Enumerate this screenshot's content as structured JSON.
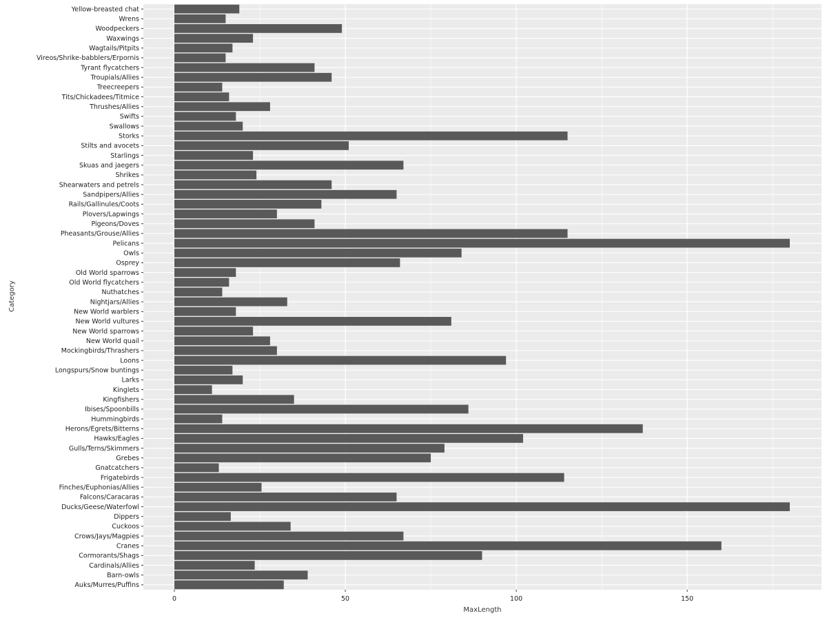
{
  "chart_data": {
    "type": "bar",
    "orientation": "horizontal",
    "xlabel": "MaxLength",
    "ylabel": "Category",
    "xlim": [
      0,
      188
    ],
    "xticks": [
      0,
      50,
      100,
      150
    ],
    "grid": true,
    "bar_color": "#595959",
    "panel_color": "#ebebeb",
    "gridline_color": "#ffffff",
    "categories": [
      "Auks/Murres/Puffins",
      "Barn-owls",
      "Cardinals/Allies",
      "Cormorants/Shags",
      "Cranes",
      "Crows/Jays/Magpies",
      "Cuckoos",
      "Dippers",
      "Ducks/Geese/Waterfowl",
      "Falcons/Caracaras",
      "Finches/Euphonias/Allies",
      "Frigatebirds",
      "Gnatcatchers",
      "Grebes",
      "Gulls/Terns/Skimmers",
      "Hawks/Eagles",
      "Herons/Egrets/Bitterns",
      "Hummingbirds",
      "Ibises/Spoonbills",
      "Kingfishers",
      "Kinglets",
      "Larks",
      "Longspurs/Snow buntings",
      "Loons",
      "Mockingbirds/Thrashers",
      "New World quail",
      "New World sparrows",
      "New World vultures",
      "New World warblers",
      "Nightjars/Allies",
      "Nuthatches",
      "Old World flycatchers",
      "Old World sparrows",
      "Osprey",
      "Owls",
      "Pelicans",
      "Pheasants/Grouse/Allies",
      "Pigeons/Doves",
      "Plovers/Lapwings",
      "Rails/Gallinules/Coots",
      "Sandpipers/Allies",
      "Shearwaters and petrels",
      "Shrikes",
      "Skuas and jaegers",
      "Starlings",
      "Stilts and avocets",
      "Storks",
      "Swallows",
      "Swifts",
      "Thrushes/Allies",
      "Tits/Chickadees/Titmice",
      "Treecreepers",
      "Troupials/Allies",
      "Tyrant flycatchers",
      "Vireos/Shrike-babblers/Erpornis",
      "Wagtails/Pitpits",
      "Waxwings",
      "Woodpeckers",
      "Wrens",
      "Yellow-breasted chat"
    ],
    "values": [
      32,
      39,
      23.5,
      90,
      160,
      67,
      34,
      16.5,
      180,
      65,
      25.5,
      114,
      13,
      75,
      79,
      102,
      137,
      14,
      86,
      35,
      11,
      20,
      17,
      97,
      30,
      28,
      23,
      81,
      18,
      33,
      14,
      16,
      18,
      66,
      84,
      180,
      115,
      41,
      30,
      43,
      65,
      46,
      24,
      67,
      23,
      51,
      115,
      20,
      18,
      28,
      16,
      14,
      46,
      41,
      15,
      17,
      23,
      49,
      15,
      19
    ]
  }
}
